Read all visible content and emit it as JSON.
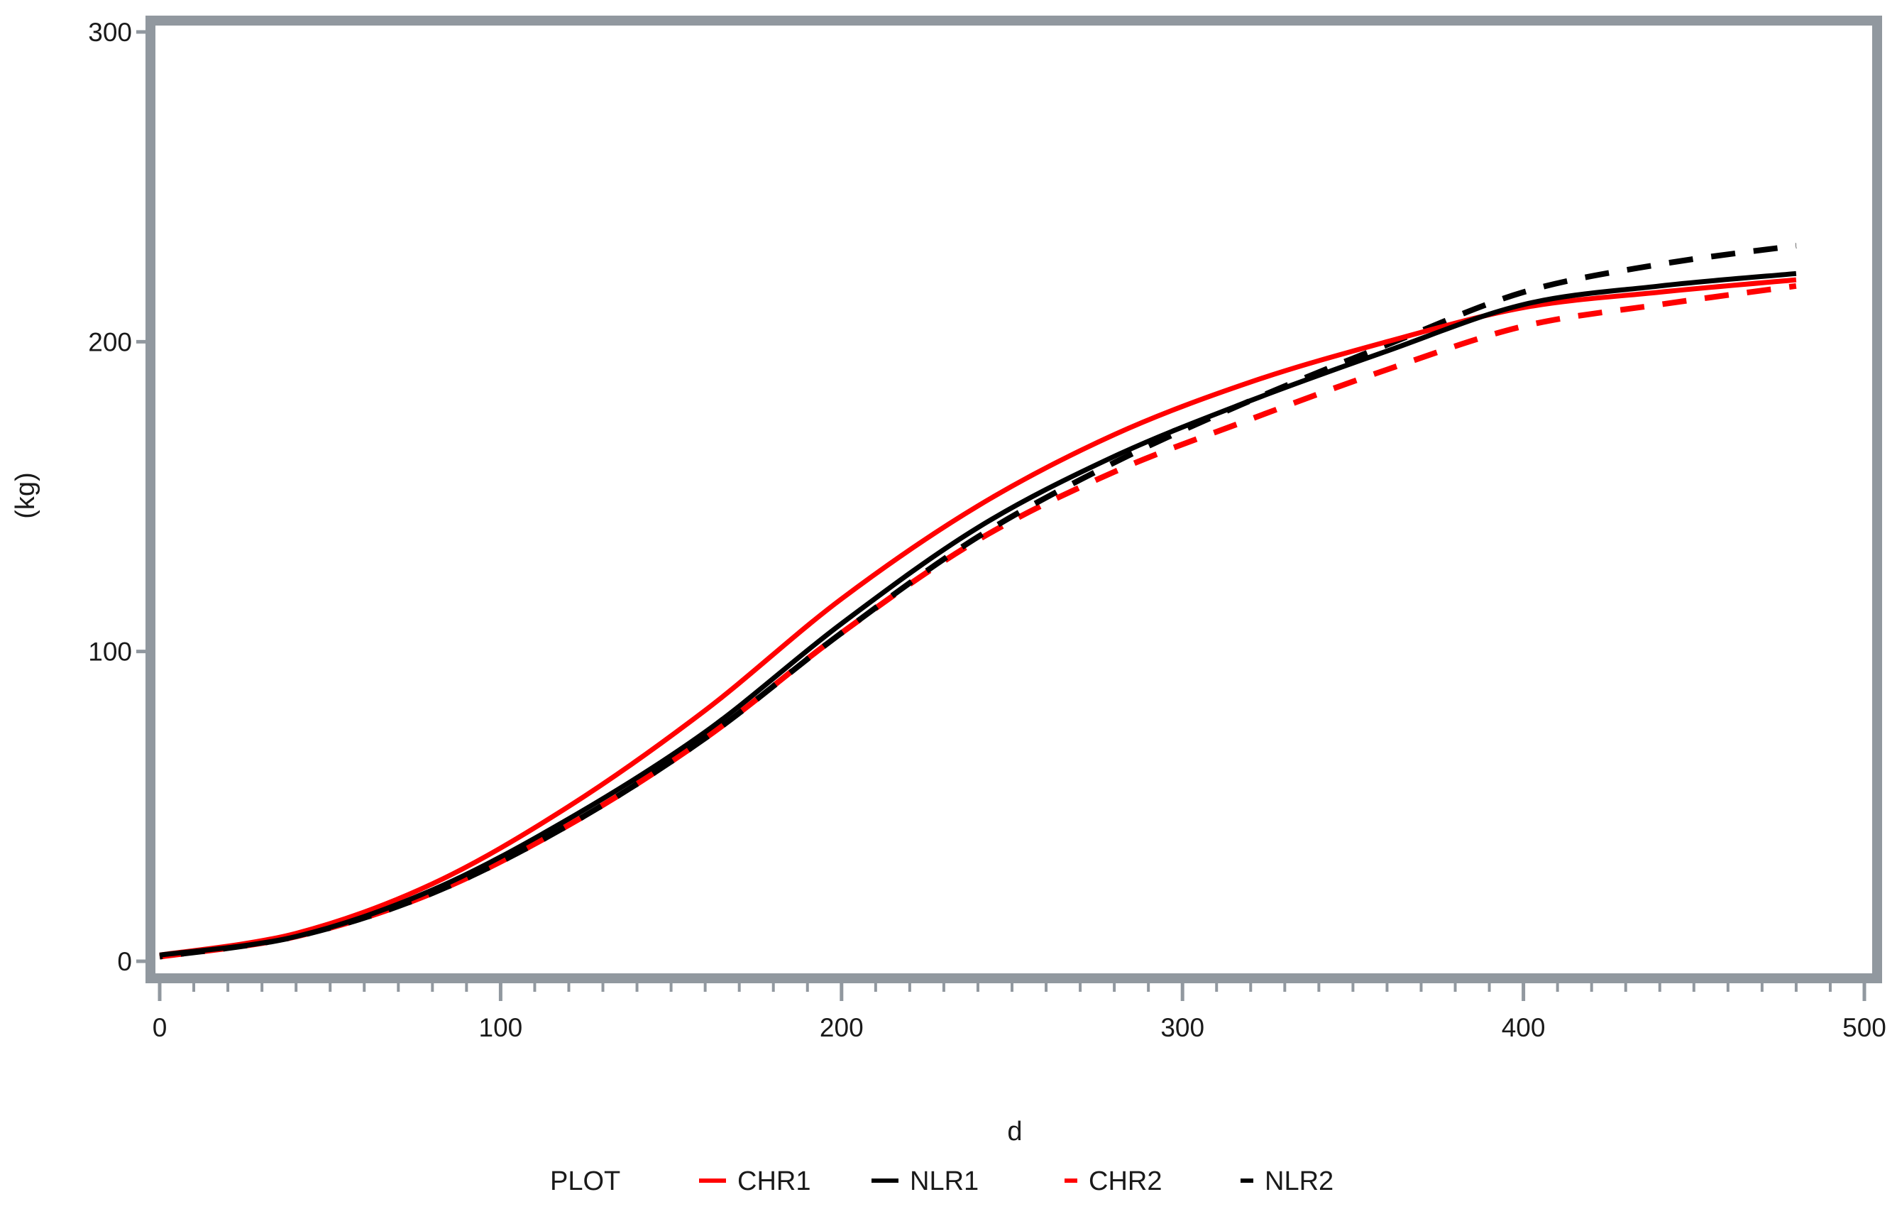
{
  "chart_data": {
    "type": "line",
    "title": "",
    "xlabel": "d",
    "ylabel": "(kg)",
    "xlim": [
      0,
      500
    ],
    "ylim": [
      0,
      300
    ],
    "x_major_ticks": [
      0,
      100,
      200,
      300,
      400,
      500
    ],
    "x_minor_tick_interval": 10,
    "y_major_ticks": [
      0,
      100,
      200,
      300
    ],
    "grid": "off",
    "legend_position": "bottom",
    "legend_title": "PLOT",
    "x": [
      0,
      40,
      80,
      120,
      160,
      200,
      240,
      280,
      320,
      360,
      400,
      440,
      480
    ],
    "series": [
      {
        "name": "CHR1",
        "color": "#ff0000",
        "style": "solid",
        "values": [
          2,
          9,
          25,
          50,
          81,
          117,
          147,
          170,
          187,
          200,
          211,
          216,
          220
        ]
      },
      {
        "name": "NLR1",
        "color": "#000000",
        "style": "solid",
        "values": [
          2,
          8,
          23,
          46,
          74,
          109,
          140,
          163,
          181,
          197,
          212,
          218,
          222
        ]
      },
      {
        "name": "CHR2",
        "color": "#ff0000",
        "style": "dashed",
        "values": [
          1.5,
          8,
          22,
          44,
          72,
          106,
          136,
          158,
          175,
          191,
          205,
          212,
          218
        ]
      },
      {
        "name": "NLR2",
        "color": "#000000",
        "style": "dashed",
        "values": [
          1.5,
          8,
          22,
          44,
          72,
          106,
          137,
          161,
          181,
          199,
          216,
          225,
          231
        ]
      }
    ]
  },
  "colors": {
    "plot_border": "#91989f",
    "tick": "#91989f",
    "label_text": "#1a1a1a",
    "background": "#ffffff"
  }
}
